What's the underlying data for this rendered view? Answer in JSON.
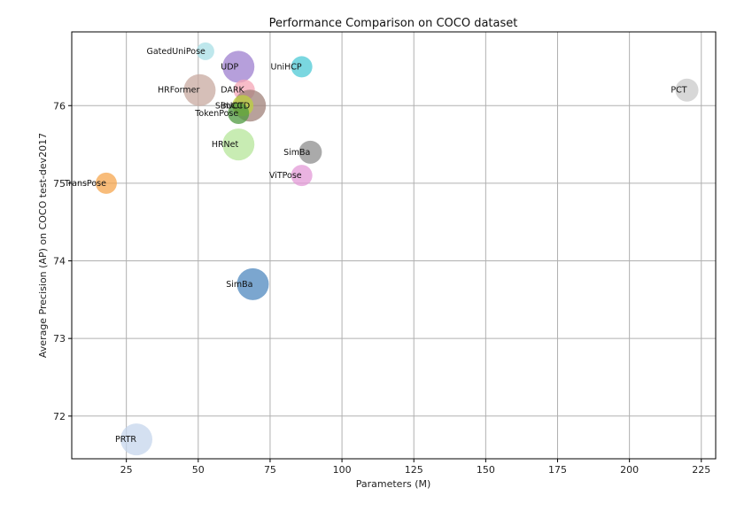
{
  "chart_data": {
    "type": "scatter",
    "title": "Performance Comparison on COCO dataset",
    "xlabel": "Parameters (M)",
    "ylabel": "Average Precision (AP) on COCO test-dev2017",
    "xlim": [
      6,
      230
    ],
    "ylim": [
      71.45,
      76.95
    ],
    "xticks": [
      "25",
      "50",
      "75",
      "100",
      "125",
      "150",
      "175",
      "200",
      "225"
    ],
    "xtick_values": [
      25,
      50,
      75,
      100,
      125,
      150,
      175,
      200,
      225
    ],
    "yticks": [
      "72",
      "73",
      "74",
      "75",
      "76"
    ],
    "ytick_values": [
      72,
      73,
      74,
      75,
      76
    ],
    "grid": true,
    "points": [
      {
        "label": "GatedUniPose",
        "x": 52.5,
        "y": 76.7,
        "size": 10,
        "color": "#a8dfe6"
      },
      {
        "label": "UDP",
        "x": 64,
        "y": 76.5,
        "size": 18,
        "color": "#9d7fcf"
      },
      {
        "label": "UniHCP",
        "x": 86,
        "y": 76.5,
        "size": 12,
        "color": "#4ecad6"
      },
      {
        "label": "PCT",
        "x": 220,
        "y": 76.2,
        "size": 13,
        "color": "#c9c9c9"
      },
      {
        "label": "DARK",
        "x": 66,
        "y": 76.2,
        "size": 12,
        "color": "#f4a6b6"
      },
      {
        "label": "HRFormer",
        "x": 50.5,
        "y": 76.2,
        "size": 18,
        "color": "#c8a9a0"
      },
      {
        "label": "BUCTD",
        "x": 68,
        "y": 76.0,
        "size": 18,
        "color": "#a0827a"
      },
      {
        "label": "SimCC",
        "x": 65.5,
        "y": 76.0,
        "size": 12,
        "color": "#bcd13f"
      },
      {
        "label": "TokenPose",
        "x": 64,
        "y": 75.9,
        "size": 12,
        "color": "#4f9a3f"
      },
      {
        "label": "HRNet",
        "x": 64,
        "y": 75.5,
        "size": 18,
        "color": "#b6e59a"
      },
      {
        "label": "SimBa",
        "x": 89,
        "y": 75.4,
        "size": 13,
        "color": "#8e8e8e"
      },
      {
        "label": "ViTPose",
        "x": 86,
        "y": 75.1,
        "size": 12,
        "color": "#e39ad7"
      },
      {
        "label": "TransPose",
        "x": 18,
        "y": 75.0,
        "size": 12,
        "color": "#f5a54e"
      },
      {
        "label": "SimBa",
        "x": 69,
        "y": 73.7,
        "size": 18,
        "color": "#4f88bf"
      },
      {
        "label": "PRTR",
        "x": 28.5,
        "y": 71.7,
        "size": 18,
        "color": "#c6d6ec"
      }
    ]
  }
}
